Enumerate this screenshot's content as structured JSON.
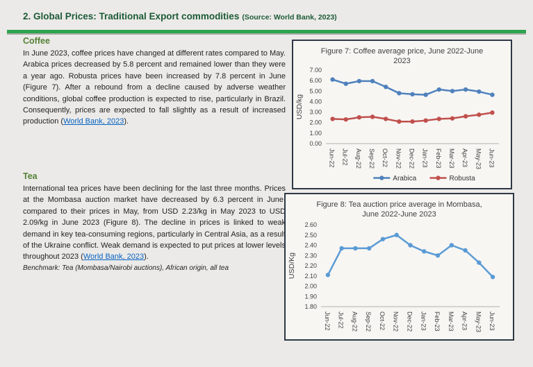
{
  "header": {
    "title": "2. Global Prices: Traditional Export commodities",
    "source": "(Source: World Bank, 2023)"
  },
  "colors": {
    "title_green": "#1c5a36",
    "rule_green": "#2da44e",
    "heading_green": "#538135",
    "link_blue": "#0563c1",
    "arabica_blue": "#4f81bd",
    "robusta_red": "#c0504d",
    "tea_blue": "#5b9bd5"
  },
  "sections": {
    "coffee": {
      "heading": "Coffee",
      "body_pre": "In June 2023, coffee prices have changed at different rates compared to May. Arabica prices decreased by 5.8 percent and remained lower than they were a year ago. Robusta prices have been increased by 7.8 percent in June (Figure 7). After a rebound from a decline caused by adverse weather conditions, global coffee production is expected to rise, particularly in Brazil. Consequently, prices are expected to fall slightly as a result of increased production (",
      "link_text": "World Bank, 2023",
      "body_post": ")."
    },
    "tea": {
      "heading": "Tea",
      "body_pre": "International tea prices have been declining for the last three months. Prices at the Mombasa auction market have decreased by 6.3 percent in June, compared to their prices in May, from USD 2.23/kg in May 2023 to USD 2.09/kg in June 2023 (Figure 8). The decline in prices is linked to weak demand in key tea-consuming regions, particularly in Central Asia, as a result of the Ukraine conflict. Weak demand is expected to put prices at lower levels throughout 2023 (",
      "link_text": "World Bank, 2023",
      "body_post": ").",
      "benchmark": "Benchmark: Tea (Mombasa/Nairobi auctions), African origin, all tea"
    }
  },
  "chart_data": [
    {
      "type": "line",
      "title": "Figure 7:  Coffee average price, June 2022-June 2023",
      "ylabel": "USD/kg",
      "ylim": [
        0,
        7
      ],
      "ytick_step": 1,
      "ytick_decimals": 2,
      "grid": false,
      "legend_position": "bottom",
      "categories": [
        "Jun-22",
        "Jul-22",
        "Aug-22",
        "Sep-22",
        "Oct-22",
        "Nov-22",
        "Dec-22",
        "Jan-23",
        "Feb-23",
        "Mar-23",
        "Apr-23",
        "May-23",
        "Jun-23"
      ],
      "series": [
        {
          "name": "Arabica",
          "color": "#4f81bd",
          "values": [
            6.1,
            5.7,
            5.95,
            5.95,
            5.4,
            4.8,
            4.7,
            4.65,
            5.15,
            5.0,
            5.15,
            4.95,
            4.65
          ]
        },
        {
          "name": "Robusta",
          "color": "#c0504d",
          "values": [
            2.35,
            2.3,
            2.5,
            2.55,
            2.35,
            2.1,
            2.1,
            2.2,
            2.35,
            2.4,
            2.6,
            2.75,
            2.95
          ]
        }
      ]
    },
    {
      "type": "line",
      "title": "Figure 8:  Tea auction price average in Mombasa, June 2022-June 2023",
      "ylabel": "USD/Kg",
      "ylim": [
        1.8,
        2.6
      ],
      "ytick_step": 0.1,
      "ytick_decimals": 2,
      "grid": false,
      "legend_position": "none",
      "categories": [
        "Jun-22",
        "Jul-22",
        "Aug-22",
        "Sep-22",
        "Oct-22",
        "Nov-22",
        "Dec-22",
        "Jan-23",
        "Feb-23",
        "Mar-23",
        "Apr-23",
        "May-23",
        "Jun-23"
      ],
      "series": [
        {
          "name": "Tea",
          "color": "#5b9bd5",
          "values": [
            2.11,
            2.37,
            2.37,
            2.37,
            2.46,
            2.5,
            2.4,
            2.34,
            2.3,
            2.4,
            2.35,
            2.23,
            2.09
          ]
        }
      ]
    }
  ]
}
